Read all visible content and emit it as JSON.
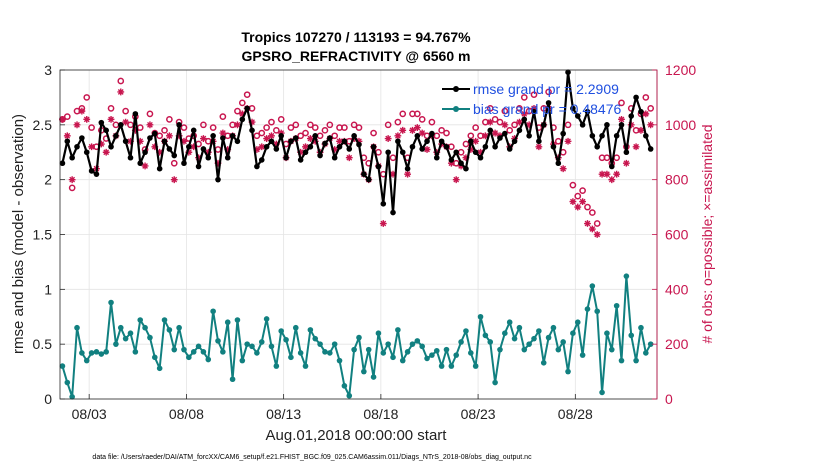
{
  "chart_data": {
    "type": "line",
    "title_line1": "Tropics 107270 / 113193 = 94.767%",
    "title_line2": "GPSRO_REFRACTIVITY @ 6560 m",
    "xlabel": "Aug.01,2018 00:00:00 start",
    "ylabel": "rmse and bias (model - observation)",
    "y2label": "# of obs: o=possible; ×=assimilated",
    "xlim": [
      1.5,
      32.2
    ],
    "ylim": [
      0,
      3
    ],
    "y2lim": [
      0,
      1200
    ],
    "xticks": [
      3,
      8,
      13,
      18,
      23,
      28
    ],
    "xtick_labels": [
      "08/03",
      "08/08",
      "08/13",
      "08/18",
      "08/23",
      "08/28"
    ],
    "yticks": [
      0,
      0.5,
      1,
      1.5,
      2,
      2.5,
      3
    ],
    "ytick_labels": [
      "0",
      "0.5",
      "1",
      "1.5",
      "2",
      "2.5",
      "3"
    ],
    "y2ticks": [
      0,
      200,
      400,
      600,
      800,
      1000,
      1200
    ],
    "y2tick_labels": [
      "0",
      "200",
      "400",
      "600",
      "800",
      "1000",
      "1200"
    ],
    "grid": true,
    "legend_position": "top-right",
    "legend": [
      "rmse grand pr = 2.2909",
      "bias grand pr = 0.48476"
    ],
    "colors": {
      "rmse": "#000000",
      "bias": "#118080",
      "obs": "#c8164f"
    },
    "x": [
      1.625,
      1.875,
      2.125,
      2.375,
      2.625,
      2.875,
      3.125,
      3.375,
      3.625,
      3.875,
      4.125,
      4.375,
      4.625,
      4.875,
      5.125,
      5.375,
      5.625,
      5.875,
      6.125,
      6.375,
      6.625,
      6.875,
      7.125,
      7.375,
      7.625,
      7.875,
      8.125,
      8.375,
      8.625,
      8.875,
      9.125,
      9.375,
      9.625,
      9.875,
      10.125,
      10.375,
      10.625,
      10.875,
      11.125,
      11.375,
      11.625,
      11.875,
      12.125,
      12.375,
      12.625,
      12.875,
      13.125,
      13.375,
      13.625,
      13.875,
      14.125,
      14.375,
      14.625,
      14.875,
      15.125,
      15.375,
      15.625,
      15.875,
      16.125,
      16.375,
      16.625,
      16.875,
      17.125,
      17.375,
      17.625,
      17.875,
      18.125,
      18.375,
      18.625,
      18.875,
      19.125,
      19.375,
      19.625,
      19.875,
      20.125,
      20.375,
      20.625,
      20.875,
      21.125,
      21.375,
      21.625,
      21.875,
      22.125,
      22.375,
      22.625,
      22.875,
      23.125,
      23.375,
      23.625,
      23.875,
      24.125,
      24.375,
      24.625,
      24.875,
      25.125,
      25.375,
      25.625,
      25.875,
      26.125,
      26.375,
      26.625,
      26.875,
      27.125,
      27.375,
      27.625,
      27.875,
      28.125,
      28.375,
      28.625,
      28.875,
      29.125,
      29.375,
      29.625,
      29.875,
      30.125,
      30.375,
      30.625,
      30.875,
      31.125,
      31.375,
      31.625,
      31.875
    ],
    "rmse": [
      2.15,
      2.35,
      2.2,
      2.3,
      2.38,
      2.25,
      2.08,
      2.05,
      2.52,
      2.45,
      2.3,
      2.4,
      2.5,
      2.35,
      2.2,
      2.6,
      2.15,
      2.25,
      2.38,
      2.42,
      2.1,
      2.35,
      2.28,
      2.22,
      2.5,
      2.15,
      2.3,
      2.45,
      2.12,
      2.28,
      2.2,
      2.4,
      2.0,
      2.38,
      2.2,
      2.4,
      2.35,
      2.55,
      2.65,
      2.45,
      2.12,
      2.18,
      2.3,
      2.35,
      2.28,
      2.4,
      2.2,
      2.35,
      2.38,
      2.18,
      2.25,
      2.3,
      2.4,
      2.22,
      2.33,
      2.38,
      2.2,
      2.3,
      2.35,
      2.28,
      2.4,
      2.32,
      2.05,
      2.0,
      2.3,
      2.12,
      1.78,
      2.25,
      1.7,
      2.35,
      2.25,
      2.1,
      2.3,
      2.4,
      2.28,
      2.35,
      2.42,
      2.2,
      2.35,
      2.3,
      2.18,
      2.25,
      2.15,
      2.1,
      2.35,
      2.25,
      2.2,
      2.3,
      2.45,
      2.3,
      2.38,
      2.42,
      2.28,
      2.35,
      2.45,
      2.55,
      2.4,
      2.62,
      2.35,
      2.5,
      2.7,
      2.3,
      2.15,
      2.42,
      2.98,
      2.65,
      2.58,
      2.5,
      2.62,
      2.4,
      2.3,
      2.4,
      2.5,
      2.12,
      2.4,
      2.5,
      2.25,
      2.58,
      2.75,
      2.62,
      2.4,
      2.28,
      2.15
    ],
    "bias": [
      0.3,
      0.15,
      0.02,
      0.65,
      0.42,
      0.35,
      0.42,
      0.43,
      0.41,
      0.43,
      0.88,
      0.5,
      0.65,
      0.55,
      0.6,
      0.43,
      0.72,
      0.65,
      0.56,
      0.38,
      0.28,
      0.72,
      0.63,
      0.45,
      0.65,
      0.45,
      0.38,
      0.43,
      0.48,
      0.43,
      0.36,
      0.8,
      0.53,
      0.43,
      0.7,
      0.18,
      0.72,
      0.35,
      0.5,
      0.48,
      0.42,
      0.52,
      0.73,
      0.48,
      0.3,
      0.62,
      0.54,
      0.38,
      0.65,
      0.42,
      0.3,
      0.63,
      0.55,
      0.5,
      0.43,
      0.42,
      0.5,
      0.35,
      0.12,
      0.03,
      0.45,
      0.56,
      0.25,
      0.45,
      0.2,
      0.6,
      0.42,
      0.5,
      0.38,
      0.63,
      0.35,
      0.43,
      0.5,
      0.53,
      0.48,
      0.37,
      0.4,
      0.44,
      0.3,
      0.45,
      0.3,
      0.4,
      0.52,
      0.62,
      0.42,
      0.3,
      0.75,
      0.58,
      0.52,
      0.15,
      0.45,
      0.6,
      0.7,
      0.55,
      0.65,
      0.45,
      0.5,
      0.55,
      0.62,
      0.33,
      0.56,
      0.65,
      0.45,
      0.52,
      0.25,
      0.6,
      0.7,
      0.4,
      0.82,
      1.03,
      0.8,
      0.06,
      0.6,
      0.45,
      0.85,
      0.35,
      1.12,
      0.58,
      0.35,
      0.65,
      0.42,
      0.5
    ],
    "obs_possible": [
      1020,
      1030,
      770,
      1050,
      1060,
      1100,
      990,
      920,
      980,
      950,
      1060,
      1000,
      1160,
      1050,
      1000,
      1030,
      990,
      910,
      1040,
      970,
      960,
      980,
      1020,
      860,
      1010,
      990,
      950,
      960,
      930,
      1000,
      940,
      990,
      910,
      1030,
      960,
      1000,
      1050,
      1080,
      1110,
      1060,
      960,
      970,
      990,
      1010,
      980,
      1020,
      930,
      990,
      1000,
      960,
      970,
      1000,
      990,
      960,
      980,
      1000,
      960,
      990,
      990,
      940,
      1000,
      990,
      880,
      860,
      970,
      900,
      820,
      1000,
      880,
      1010,
      1040,
      880,
      1040,
      1040,
      1020,
      960,
      1010,
      960,
      980,
      970,
      920,
      860,
      900,
      930,
      960,
      990,
      960,
      1010,
      1060,
      1020,
      1010,
      1050,
      980,
      1000,
      1060,
      1100,
      1050,
      1110,
      990,
      1060,
      1120,
      990,
      940,
      900,
      1000,
      780,
      740,
      760,
      700,
      680,
      640,
      880,
      880,
      860,
      880,
      1080,
      920,
      1060,
      980,
      1040,
      1100,
      1060,
      990,
      950,
      960
    ],
    "obs_assimilated": [
      1020,
      960,
      800,
      1000,
      1050,
      1020,
      920,
      840,
      930,
      900,
      1020,
      960,
      1120,
      1010,
      940,
      980,
      940,
      850,
      1000,
      920,
      900,
      940,
      960,
      800,
      960,
      940,
      900,
      920,
      880,
      950,
      900,
      940,
      860,
      970,
      910,
      960,
      1000,
      1040,
      1060,
      1010,
      910,
      920,
      950,
      960,
      930,
      970,
      880,
      940,
      950,
      900,
      920,
      950,
      940,
      900,
      930,
      950,
      910,
      940,
      940,
      880,
      950,
      940,
      820,
      800,
      920,
      850,
      640,
      950,
      820,
      960,
      980,
      820,
      980,
      990,
      970,
      910,
      960,
      900,
      930,
      920,
      860,
      800,
      850,
      880,
      910,
      940,
      900,
      960,
      1010,
      970,
      960,
      1000,
      920,
      950,
      1010,
      1040,
      1000,
      1060,
      920,
      1000,
      1060,
      930,
      880,
      840,
      940,
      720,
      700,
      720,
      640,
      620,
      600,
      820,
      820,
      800,
      820,
      1020,
      860,
      1000,
      920,
      980,
      1040,
      1000,
      930,
      890,
      900
    ]
  },
  "footer": "data file: /Users/raeder/DAI/ATM_forcXX/CAM6_setup/f.e21.FHIST_BGC.f09_025.CAM6assim.011/Diags_NTrS_2018-08/obs_diag_output.nc"
}
